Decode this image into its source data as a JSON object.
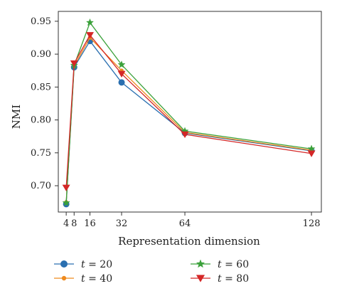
{
  "chart_data": {
    "type": "line",
    "xlabel": "Representation dimension",
    "ylabel": "NMI",
    "x": [
      4,
      8,
      16,
      32,
      64,
      128
    ],
    "x_ticks": [
      "4",
      "8",
      "16",
      "32",
      "64",
      "128"
    ],
    "y_ticks": [
      "0.70",
      "0.75",
      "0.80",
      "0.85",
      "0.90",
      "0.95"
    ],
    "xlim": [
      0,
      133
    ],
    "ylim": [
      0.66,
      0.965
    ],
    "grid": false,
    "legend_position": "bottom",
    "series": [
      {
        "name_var": "t",
        "name_value": "20",
        "color": "#2a6fb0",
        "marker": "circle",
        "values": [
          0.672,
          0.88,
          0.92,
          0.857,
          0.78,
          0.753
        ]
      },
      {
        "name_var": "t",
        "name_value": "40",
        "color": "#ef8a1e",
        "marker": "dot",
        "values": [
          0.675,
          0.882,
          0.925,
          0.875,
          0.781,
          0.754
        ]
      },
      {
        "name_var": "t",
        "name_value": "60",
        "color": "#3aa13a",
        "marker": "star",
        "values": [
          0.674,
          0.883,
          0.948,
          0.884,
          0.783,
          0.756
        ]
      },
      {
        "name_var": "t",
        "name_value": "80",
        "color": "#d42727",
        "marker": "triangle-down",
        "values": [
          0.697,
          0.886,
          0.929,
          0.87,
          0.778,
          0.749
        ]
      }
    ]
  }
}
